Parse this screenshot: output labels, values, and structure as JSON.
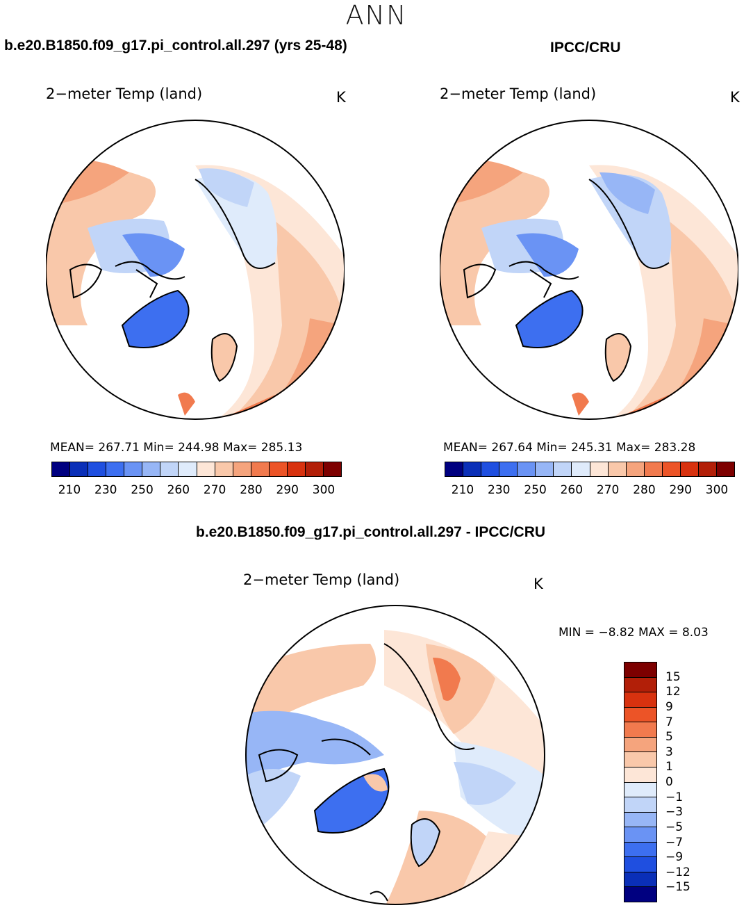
{
  "title": "ANN",
  "panels": {
    "left": {
      "case": "b.e20.B1850.f09_g17.pi_control.all.297 (yrs 25-48)",
      "variable": "2−meter Temp (land)",
      "units": "K",
      "stats": "MEAN=  267.71   Min=  244.98   Max=  285.13"
    },
    "right": {
      "case": "IPCC/CRU",
      "variable": "2−meter Temp (land)",
      "units": "K",
      "stats": "MEAN=  267.64   Min=  245.31   Max=  283.28"
    },
    "diff": {
      "case": "b.e20.B1850.f09_g17.pi_control.all.297 - IPCC/CRU",
      "variable": "2−meter Temp (land)",
      "units": "K",
      "minmax": "MIN =   −8.82  MAX =    8.03"
    }
  },
  "colorbar_abs": {
    "colors": [
      "#000080",
      "#0a2fb8",
      "#1f4fe0",
      "#3d6ff0",
      "#6a93f4",
      "#97b6f6",
      "#c1d5f8",
      "#dfebfb",
      "#fde6d7",
      "#f9c8aa",
      "#f5a47d",
      "#f17a4e",
      "#ec5427",
      "#d8320f",
      "#b21f08",
      "#7d0000"
    ],
    "tick_labels": [
      "210",
      "230",
      "250",
      "260",
      "270",
      "280",
      "290",
      "300"
    ]
  },
  "colorbar_diff": {
    "colors": [
      "#7d0000",
      "#b21f08",
      "#d8320f",
      "#ec5427",
      "#f17a4e",
      "#f5a47d",
      "#f9c8aa",
      "#fde6d7",
      "#dfebfb",
      "#c1d5f8",
      "#97b6f6",
      "#6a93f4",
      "#3d6ff0",
      "#1f4fe0",
      "#0a2fb8",
      "#000080"
    ],
    "tick_labels": [
      "15",
      "12",
      "9",
      "7",
      "5",
      "3",
      "1",
      "0",
      "−1",
      "−3",
      "−5",
      "−7",
      "−9",
      "−12",
      "−15"
    ]
  }
}
